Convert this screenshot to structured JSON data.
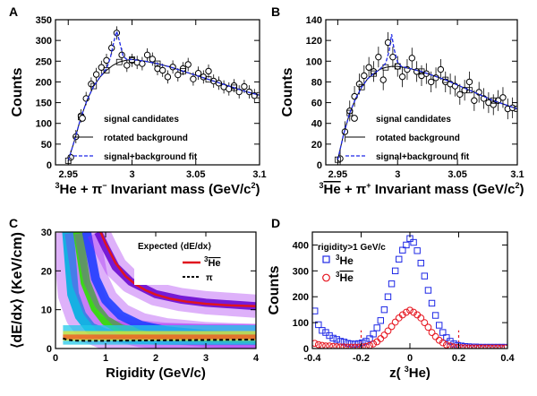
{
  "chart_data": [
    {
      "panel": "A",
      "type": "scatter",
      "ylabel": "Counts",
      "xlabel": {
        "pre": "3",
        "mid": "He + π",
        "sup": "−",
        "post": " Invariant mass (GeV/c",
        "sup2": "2",
        "end": ")"
      },
      "xlim": [
        2.94,
        3.1
      ],
      "ylim": [
        0,
        350
      ],
      "xticks": [
        "2.95",
        "3",
        "3.05",
        "3.1"
      ],
      "yticks": [
        "0",
        "50",
        "100",
        "150",
        "200",
        "250",
        "300",
        "350"
      ],
      "legend": [
        "signal candidates",
        "rotated background",
        "signal+background fit"
      ],
      "series": [
        {
          "name": "signal candidates",
          "x": [
            2.952,
            2.956,
            2.96,
            2.964,
            2.968,
            2.972,
            2.976,
            2.98,
            2.984,
            2.988,
            2.992,
            2.996,
            3.0,
            3.004,
            3.008,
            3.012,
            3.016,
            3.02,
            3.024,
            3.028,
            3.032,
            3.036,
            3.04,
            3.044,
            3.048,
            3.052,
            3.056,
            3.06,
            3.064,
            3.068,
            3.072,
            3.076,
            3.08,
            3.084,
            3.088,
            3.092,
            3.096
          ],
          "y": [
            18,
            68,
            118,
            160,
            195,
            218,
            235,
            252,
            282,
            318,
            265,
            240,
            252,
            247,
            244,
            265,
            255,
            232,
            228,
            212,
            236,
            217,
            232,
            242,
            207,
            221,
            212,
            226,
            202,
            197,
            188,
            183,
            191,
            176,
            189,
            176,
            167
          ]
        },
        {
          "name": "rotated background",
          "x": [
            2.95,
            2.955,
            2.96,
            2.965,
            2.97,
            2.975,
            2.98,
            2.985,
            2.99,
            2.995,
            3.0,
            3.01,
            3.02,
            3.03,
            3.04,
            3.05,
            3.06,
            3.07,
            3.08,
            3.09,
            3.1
          ],
          "y": [
            10,
            60,
            115,
            158,
            190,
            212,
            228,
            240,
            248,
            252,
            254,
            250,
            244,
            236,
            226,
            216,
            206,
            196,
            186,
            176,
            168
          ]
        },
        {
          "name": "signal+background fit",
          "x": [
            2.95,
            2.955,
            2.96,
            2.965,
            2.97,
            2.975,
            2.98,
            2.983,
            2.986,
            2.988,
            2.99,
            2.993,
            2.996,
            3.0,
            3.01,
            3.02,
            3.03,
            3.04,
            3.05,
            3.06,
            3.07,
            3.08,
            3.09,
            3.1
          ],
          "y": [
            10,
            60,
            115,
            158,
            190,
            212,
            232,
            258,
            300,
            322,
            300,
            262,
            254,
            254,
            250,
            244,
            236,
            226,
            216,
            206,
            196,
            186,
            176,
            168
          ]
        }
      ]
    },
    {
      "panel": "B",
      "type": "scatter",
      "ylabel": "Counts",
      "xlabel": {
        "pre": "3",
        "mid": "He",
        "bar": true,
        "mid2": " + π",
        "sup": "+",
        "post": " Invariant mass (GeV/c",
        "sup2": "2",
        "end": ")"
      },
      "xlim": [
        2.94,
        3.1
      ],
      "ylim": [
        0,
        140
      ],
      "xticks": [
        "2.95",
        "3",
        "3.05",
        "3.1"
      ],
      "yticks": [
        "0",
        "20",
        "40",
        "60",
        "80",
        "100",
        "120",
        "140"
      ],
      "legend": [
        "signal candidates",
        "rotated background",
        "signal+background fit"
      ],
      "series": [
        {
          "name": "signal candidates",
          "x": [
            2.952,
            2.956,
            2.96,
            2.964,
            2.968,
            2.972,
            2.976,
            2.98,
            2.984,
            2.988,
            2.992,
            2.996,
            3.0,
            3.004,
            3.008,
            3.012,
            3.016,
            3.02,
            3.024,
            3.028,
            3.032,
            3.036,
            3.04,
            3.044,
            3.048,
            3.052,
            3.056,
            3.06,
            3.064,
            3.068,
            3.072,
            3.076,
            3.08,
            3.084,
            3.088,
            3.092,
            3.096
          ],
          "y": [
            6,
            32,
            52,
            66,
            78,
            86,
            94,
            90,
            104,
            82,
            118,
            104,
            95,
            85,
            92,
            103,
            90,
            86,
            88,
            80,
            84,
            92,
            80,
            78,
            76,
            68,
            72,
            80,
            62,
            70,
            64,
            60,
            58,
            62,
            65,
            54,
            55
          ]
        },
        {
          "name": "rotated background",
          "x": [
            2.95,
            2.955,
            2.96,
            2.965,
            2.97,
            2.975,
            2.98,
            2.985,
            2.99,
            2.995,
            3.0,
            3.01,
            3.02,
            3.03,
            3.04,
            3.05,
            3.06,
            3.07,
            3.08,
            3.09,
            3.1
          ],
          "y": [
            5,
            30,
            50,
            64,
            75,
            83,
            88,
            92,
            94,
            95,
            95,
            93,
            90,
            86,
            82,
            77,
            72,
            67,
            62,
            58,
            54
          ]
        },
        {
          "name": "signal+background fit",
          "x": [
            2.95,
            2.955,
            2.96,
            2.965,
            2.97,
            2.975,
            2.98,
            2.985,
            2.99,
            2.993,
            2.995,
            2.997,
            3.0,
            3.003,
            3.01,
            3.02,
            3.03,
            3.04,
            3.05,
            3.06,
            3.07,
            3.08,
            3.09,
            3.1
          ],
          "y": [
            5,
            30,
            50,
            64,
            75,
            83,
            88,
            92,
            98,
            110,
            126,
            112,
            99,
            95,
            93,
            90,
            86,
            82,
            77,
            72,
            67,
            62,
            58,
            54
          ]
        }
      ]
    },
    {
      "panel": "C",
      "type": "heatmap",
      "ylabel": "⟨dE/dx⟩ (KeV/cm)",
      "xlabel": "Rigidity (GeV/c)",
      "xlim": [
        0,
        4
      ],
      "ylim": [
        0,
        30
      ],
      "xticks": [
        "0",
        "1",
        "2",
        "3",
        "4"
      ],
      "yticks": [
        "0",
        "10",
        "20",
        "30"
      ],
      "legend_title": "Expected ⟨dE/dx⟩",
      "legend": [
        {
          "label": "3He (bar)",
          "text_pre": "3",
          "text_main": "He",
          "bar": true,
          "color": "#e0141e"
        },
        {
          "label": "π",
          "text_main": "π",
          "color": "#000000"
        }
      ],
      "curves": [
        {
          "name": "3He-bar expected",
          "x": [
            0.9,
            1.0,
            1.2,
            1.4,
            1.6,
            1.8,
            2.0,
            2.3,
            2.6,
            3.0,
            3.5,
            4.0
          ],
          "y": [
            30,
            27,
            22,
            18.6,
            16.5,
            15.0,
            13.9,
            12.8,
            12.1,
            11.5,
            11.1,
            10.9
          ]
        },
        {
          "name": "π expected",
          "x": [
            0.15,
            0.25,
            0.4,
            0.6,
            1.0,
            2.0,
            3.0,
            4.0
          ],
          "y": [
            2.6,
            2.2,
            2.05,
            2.0,
            2.0,
            2.1,
            2.2,
            2.3
          ]
        }
      ],
      "bands": [
        {
          "name": "proton band",
          "color": "#00b0e0",
          "x": [
            0.25,
            0.35,
            0.5,
            0.7,
            1.0,
            1.5,
            2.0,
            3.0,
            4.0
          ],
          "y": [
            30,
            14,
            8.5,
            5.2,
            3.6,
            2.8,
            2.5,
            2.4,
            2.4
          ]
        },
        {
          "name": "deuteron band",
          "color": "#2de000",
          "x": [
            0.45,
            0.6,
            0.8,
            1.0,
            1.3,
            1.7,
            2.2,
            3.0,
            4.0
          ],
          "y": [
            30,
            17,
            10.5,
            7.2,
            5.0,
            3.8,
            3.2,
            2.8,
            2.6
          ]
        },
        {
          "name": "triton band",
          "color": "#2040ff",
          "x": [
            0.62,
            0.8,
            1.0,
            1.3,
            1.7,
            2.2,
            3.0,
            4.0
          ],
          "y": [
            30,
            18,
            12.5,
            8.5,
            6.0,
            4.6,
            3.6,
            3.1
          ]
        },
        {
          "name": "helium-3 band",
          "color": "#6a0ad0",
          "x": [
            0.85,
            1.0,
            1.2,
            1.5,
            2.0,
            2.5,
            3.0,
            4.0
          ],
          "y": [
            30,
            26,
            21,
            17.2,
            14.0,
            12.6,
            11.8,
            10.9
          ]
        }
      ]
    },
    {
      "panel": "D",
      "type": "scatter",
      "ylabel": "Counts",
      "xlabel": "z( 3He)",
      "xlim": [
        -0.4,
        0.4
      ],
      "ylim": [
        0,
        450
      ],
      "xticks": [
        "-0.4",
        "-0.2",
        "0",
        "0.2",
        "0.4"
      ],
      "yticks": [
        "0",
        "100",
        "200",
        "300",
        "400"
      ],
      "annotation": "rigidity>1 GeV/c",
      "cut_lines": [
        -0.2,
        0.2
      ],
      "legend": [
        {
          "label": "3He",
          "color": "#1e28e6"
        },
        {
          "label": "3He (bar)",
          "color": "#e6141e"
        }
      ],
      "series": [
        {
          "name": "3He",
          "x": [
            -0.39,
            -0.375,
            -0.36,
            -0.345,
            -0.33,
            -0.315,
            -0.3,
            -0.285,
            -0.27,
            -0.255,
            -0.24,
            -0.225,
            -0.21,
            -0.195,
            -0.18,
            -0.165,
            -0.15,
            -0.135,
            -0.12,
            -0.105,
            -0.09,
            -0.075,
            -0.06,
            -0.045,
            -0.03,
            -0.015,
            0.0,
            0.015,
            0.03,
            0.045,
            0.06,
            0.075,
            0.09,
            0.105,
            0.12,
            0.135,
            0.15,
            0.165,
            0.18,
            0.195,
            0.21,
            0.225,
            0.24,
            0.255,
            0.27,
            0.285,
            0.3,
            0.315,
            0.33,
            0.345,
            0.36,
            0.375,
            0.39
          ],
          "y": [
            145,
            92,
            70,
            62,
            50,
            40,
            35,
            28,
            25,
            20,
            18,
            17,
            19,
            22,
            28,
            38,
            56,
            80,
            108,
            150,
            200,
            250,
            300,
            345,
            380,
            400,
            425,
            410,
            378,
            330,
            280,
            225,
            175,
            128,
            90,
            62,
            42,
            28,
            18,
            12,
            10,
            8,
            7,
            6,
            6,
            5,
            5,
            5,
            5,
            5,
            5,
            5,
            5
          ]
        },
        {
          "name": "3He (bar)",
          "x": [
            -0.39,
            -0.375,
            -0.36,
            -0.345,
            -0.33,
            -0.315,
            -0.3,
            -0.285,
            -0.27,
            -0.255,
            -0.24,
            -0.225,
            -0.21,
            -0.195,
            -0.18,
            -0.165,
            -0.15,
            -0.135,
            -0.12,
            -0.105,
            -0.09,
            -0.075,
            -0.06,
            -0.045,
            -0.03,
            -0.015,
            0.0,
            0.015,
            0.03,
            0.045,
            0.06,
            0.075,
            0.09,
            0.105,
            0.12,
            0.135,
            0.15,
            0.165,
            0.18,
            0.195,
            0.21,
            0.225,
            0.24,
            0.255,
            0.27,
            0.285,
            0.3,
            0.315,
            0.33,
            0.345,
            0.36,
            0.375,
            0.39
          ],
          "y": [
            20,
            15,
            12,
            10,
            10,
            8,
            7,
            6,
            6,
            5,
            5,
            5,
            5,
            6,
            8,
            12,
            18,
            26,
            38,
            52,
            68,
            85,
            102,
            118,
            130,
            140,
            148,
            140,
            130,
            118,
            100,
            82,
            62,
            46,
            32,
            22,
            14,
            10,
            6,
            4,
            3,
            3,
            2,
            2,
            2,
            2,
            2,
            2,
            2,
            2,
            2,
            2,
            2
          ]
        }
      ]
    }
  ]
}
